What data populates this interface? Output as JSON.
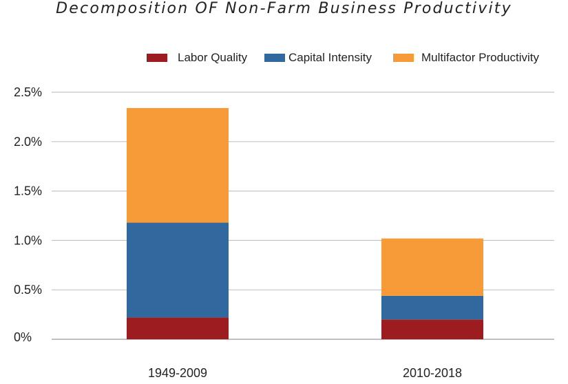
{
  "chart_data": {
    "type": "bar",
    "stacked": true,
    "title": "Decomposition OF Non-Farm Business Productivity",
    "categories": [
      "1949-2009",
      "2010-2018"
    ],
    "series": [
      {
        "name": "Labor Quality",
        "color": "#9c1c20",
        "values": [
          0.22,
          0.2
        ]
      },
      {
        "name": "Capital Intensity",
        "color": "#31699e",
        "values": [
          0.96,
          0.24
        ]
      },
      {
        "name": "Multifactor Productivity",
        "color": "#f79a38",
        "values": [
          1.16,
          0.58
        ]
      }
    ],
    "y_ticks": [
      "0%",
      "0.5%",
      "1.0%",
      "1.5%",
      "2.0%",
      "2.5%"
    ],
    "y_tick_values": [
      0,
      0.5,
      1.0,
      1.5,
      2.0,
      2.5
    ],
    "ylim": [
      0,
      2.5
    ],
    "grid": true,
    "legend_position": "top-right"
  }
}
